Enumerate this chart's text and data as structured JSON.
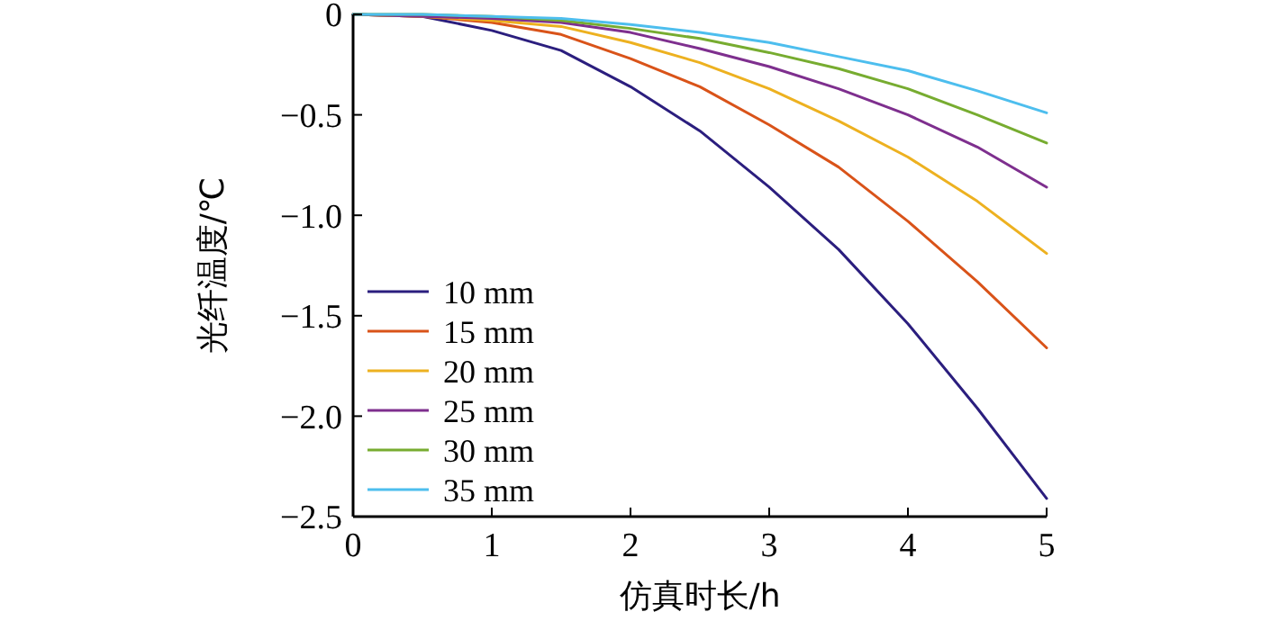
{
  "chart_data": {
    "type": "line",
    "xlabel": "仿真时长/h",
    "ylabel": "光纤温度/℃",
    "x": [
      0,
      0.5,
      1,
      1.5,
      2,
      2.5,
      3,
      3.5,
      4,
      4.5,
      5
    ],
    "xlim": [
      0,
      5
    ],
    "xticks": [
      0,
      1,
      2,
      3,
      4,
      5
    ],
    "ylim": [
      -2.5,
      0
    ],
    "yticks": [
      0,
      {
        "value": -0.5,
        "label": "−0.5"
      },
      {
        "value": -1,
        "label": "−1.0"
      },
      {
        "value": -1.5,
        "label": "−1.5"
      },
      {
        "value": -2,
        "label": "−2.0"
      },
      {
        "value": -2.5,
        "label": "−2.5"
      }
    ],
    "grid": false,
    "legend": "bottom left",
    "marker": "none",
    "line_style": "solid",
    "series": [
      {
        "name": "10 mm",
        "color": "#2b1e7e",
        "values": [
          0,
          -0.01,
          -0.08,
          -0.18,
          -0.36,
          -0.58,
          -0.86,
          -1.17,
          -1.54,
          -1.96,
          -2.41
        ]
      },
      {
        "name": "15 mm",
        "color": "#d95319",
        "values": [
          0,
          -0.01,
          -0.04,
          -0.1,
          -0.22,
          -0.36,
          -0.55,
          -0.76,
          -1.03,
          -1.33,
          -1.66
        ]
      },
      {
        "name": "20 mm",
        "color": "#edb120",
        "values": [
          0,
          -0.01,
          -0.03,
          -0.06,
          -0.14,
          -0.24,
          -0.37,
          -0.53,
          -0.71,
          -0.93,
          -1.19
        ]
      },
      {
        "name": "25 mm",
        "color": "#7e2f8e",
        "values": [
          0,
          -0.01,
          -0.02,
          -0.04,
          -0.09,
          -0.17,
          -0.26,
          -0.37,
          -0.5,
          -0.66,
          -0.86
        ]
      },
      {
        "name": "30 mm",
        "color": "#77ac30",
        "values": [
          0,
          0,
          -0.01,
          -0.03,
          -0.07,
          -0.12,
          -0.19,
          -0.27,
          -0.37,
          -0.5,
          -0.64
        ]
      },
      {
        "name": "35 mm",
        "color": "#4dbeee",
        "values": [
          0,
          0,
          -0.01,
          -0.02,
          -0.05,
          -0.09,
          -0.14,
          -0.21,
          -0.28,
          -0.38,
          -0.49
        ]
      }
    ]
  }
}
